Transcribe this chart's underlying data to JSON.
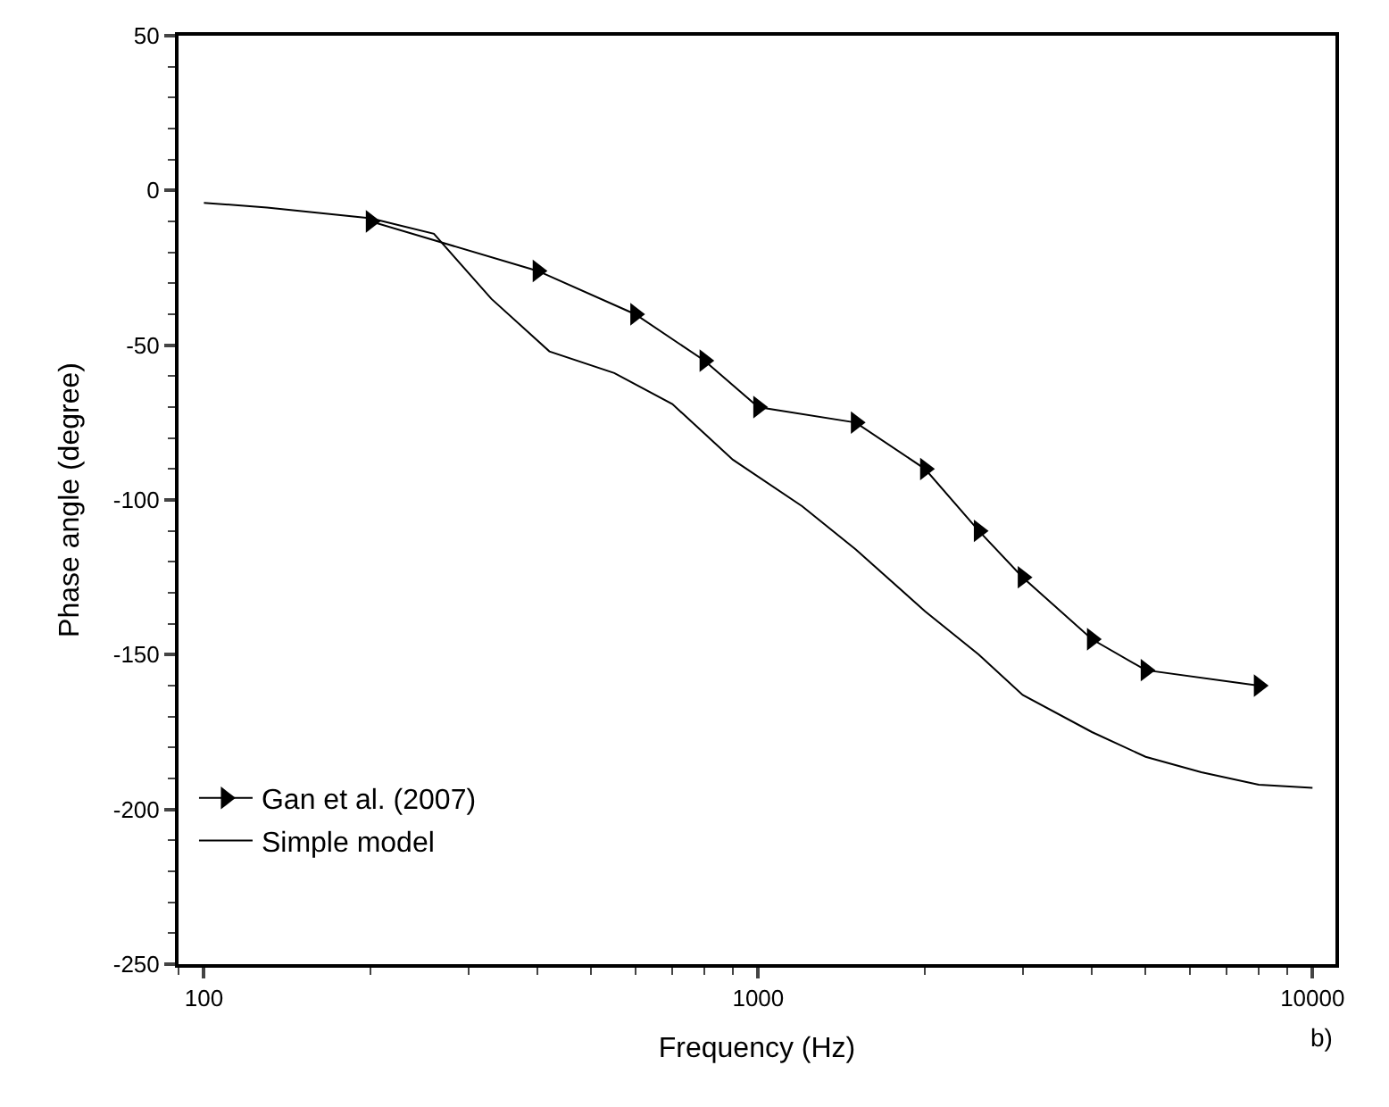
{
  "chart_data": {
    "type": "line",
    "xlabel": "Frequency (Hz)",
    "ylabel": "Phase angle (degree)",
    "log": "x",
    "xlim": [
      90,
      11000
    ],
    "xticks": [
      100,
      1000,
      10000
    ],
    "ylim": [
      -250,
      50
    ],
    "yticks": [
      -250,
      -200,
      -150,
      -100,
      -50,
      0,
      50
    ],
    "legend": "bottom left",
    "annotations": [
      "b)"
    ],
    "series": [
      {
        "name": "Gan et al. (2007)",
        "color": "#000000",
        "marker": "triangle",
        "x": [
          200,
          400,
          600,
          800,
          1000,
          1500,
          2000,
          2500,
          3000,
          4000,
          5000,
          8000
        ],
        "values": [
          -10,
          -26,
          -40,
          -55,
          -70,
          -75,
          -90,
          -110,
          -125,
          -145,
          -155,
          -160
        ]
      },
      {
        "name": "Simple model",
        "color": "#000000",
        "marker": "none",
        "x": [
          100,
          130,
          200,
          260,
          330,
          420,
          550,
          700,
          900,
          1200,
          1500,
          2000,
          2500,
          3000,
          4000,
          5000,
          6300,
          8000,
          10000
        ],
        "values": [
          -4,
          -5.5,
          -9,
          -14,
          -35,
          -52,
          -59,
          -69,
          -87,
          -102,
          -116,
          -136,
          -150,
          -163,
          -175,
          -183,
          -188,
          -192,
          -193
        ]
      }
    ]
  }
}
